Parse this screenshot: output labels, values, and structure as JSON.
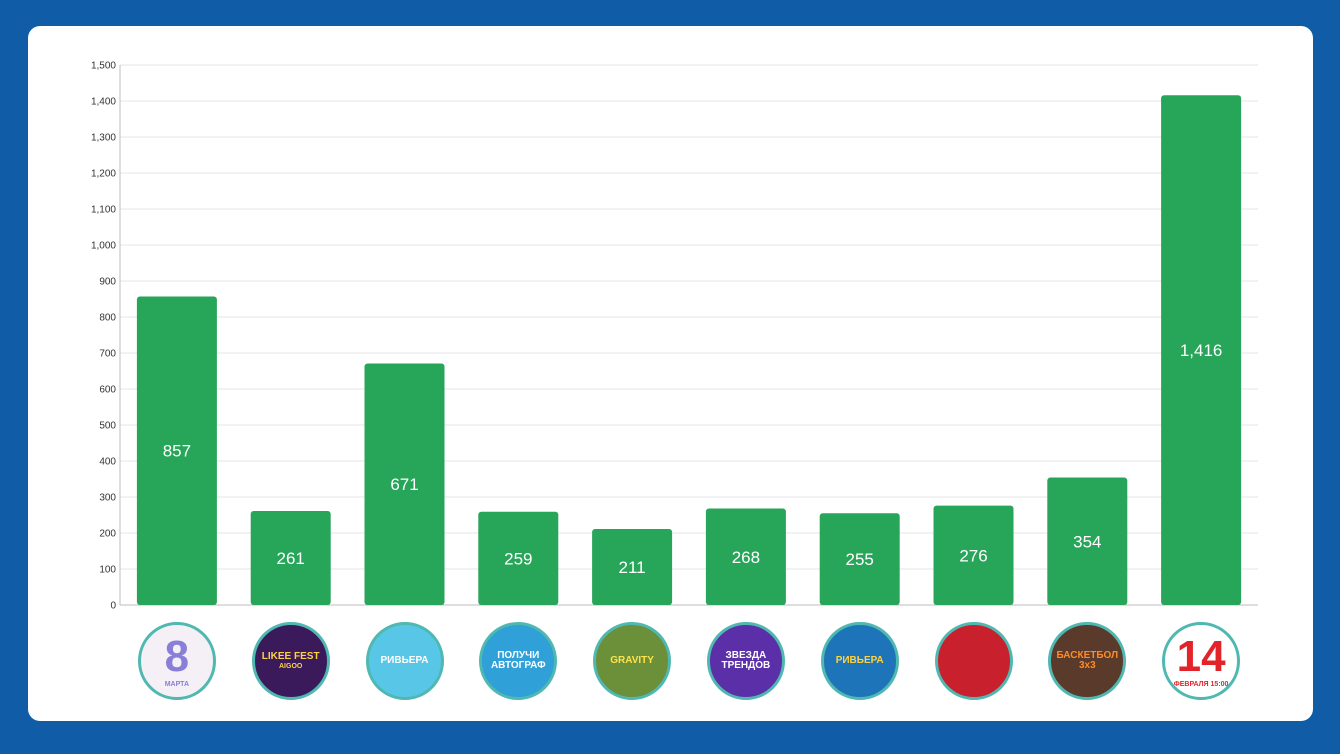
{
  "colors": {
    "background": "#105ca6",
    "bar": "#27a65a",
    "thumb_border": "#4fb8b0"
  },
  "chart_data": {
    "type": "bar",
    "categories": [
      "event-1",
      "event-2",
      "event-3",
      "event-4",
      "event-5",
      "event-6",
      "event-7",
      "event-8",
      "event-9",
      "event-10"
    ],
    "values": [
      857,
      261,
      671,
      259,
      211,
      268,
      255,
      276,
      354,
      1416
    ],
    "value_labels": [
      "857",
      "261",
      "671",
      "259",
      "211",
      "268",
      "255",
      "276",
      "354",
      "1,416"
    ],
    "ylim": [
      0,
      1500
    ],
    "y_ticks": [
      0,
      100,
      200,
      300,
      400,
      500,
      600,
      700,
      800,
      900,
      1000,
      1100,
      1200,
      1300,
      1400,
      1500
    ],
    "y_tick_labels": [
      "0",
      "100",
      "200",
      "300",
      "400",
      "500",
      "600",
      "700",
      "800",
      "900",
      "1,000",
      "1,100",
      "1,200",
      "1,300",
      "1,400",
      "1,500"
    ],
    "grid": true,
    "legend": "none"
  },
  "thumbnails": [
    {
      "text": "8",
      "caption": "МАРТА",
      "bg": "#f4f0f6",
      "fg": "#8a7fd8"
    },
    {
      "text": "LIKEE FEST",
      "caption": "AIGOO",
      "bg": "#3b1a5c",
      "fg": "#ffd23f"
    },
    {
      "text": "РИВЬЕРА",
      "caption": "",
      "bg": "#58c6e6",
      "fg": "#ffffff"
    },
    {
      "text": "ПОЛУЧИ АВТОГРАФ",
      "caption": "",
      "bg": "#2fa0d8",
      "fg": "#ffffff"
    },
    {
      "text": "GRAVITY",
      "caption": "",
      "bg": "#6c8f3a",
      "fg": "#ffe34a"
    },
    {
      "text": "ЗВЕЗДА ТРЕНДОВ",
      "caption": "",
      "bg": "#5b2fa8",
      "fg": "#ffffff"
    },
    {
      "text": "РИВЬЕРА",
      "caption": "",
      "bg": "#1e74b8",
      "fg": "#ffd23f"
    },
    {
      "text": "",
      "caption": "",
      "bg": "#c8202c",
      "fg": "#ffffff"
    },
    {
      "text": "БАСКЕТБОЛ 3x3",
      "caption": "",
      "bg": "#5a3a2a",
      "fg": "#ff8a2a"
    },
    {
      "text": "14",
      "caption": "ФЕВРАЛЯ 15:00",
      "bg": "#ffffff",
      "fg": "#e2232a"
    }
  ]
}
